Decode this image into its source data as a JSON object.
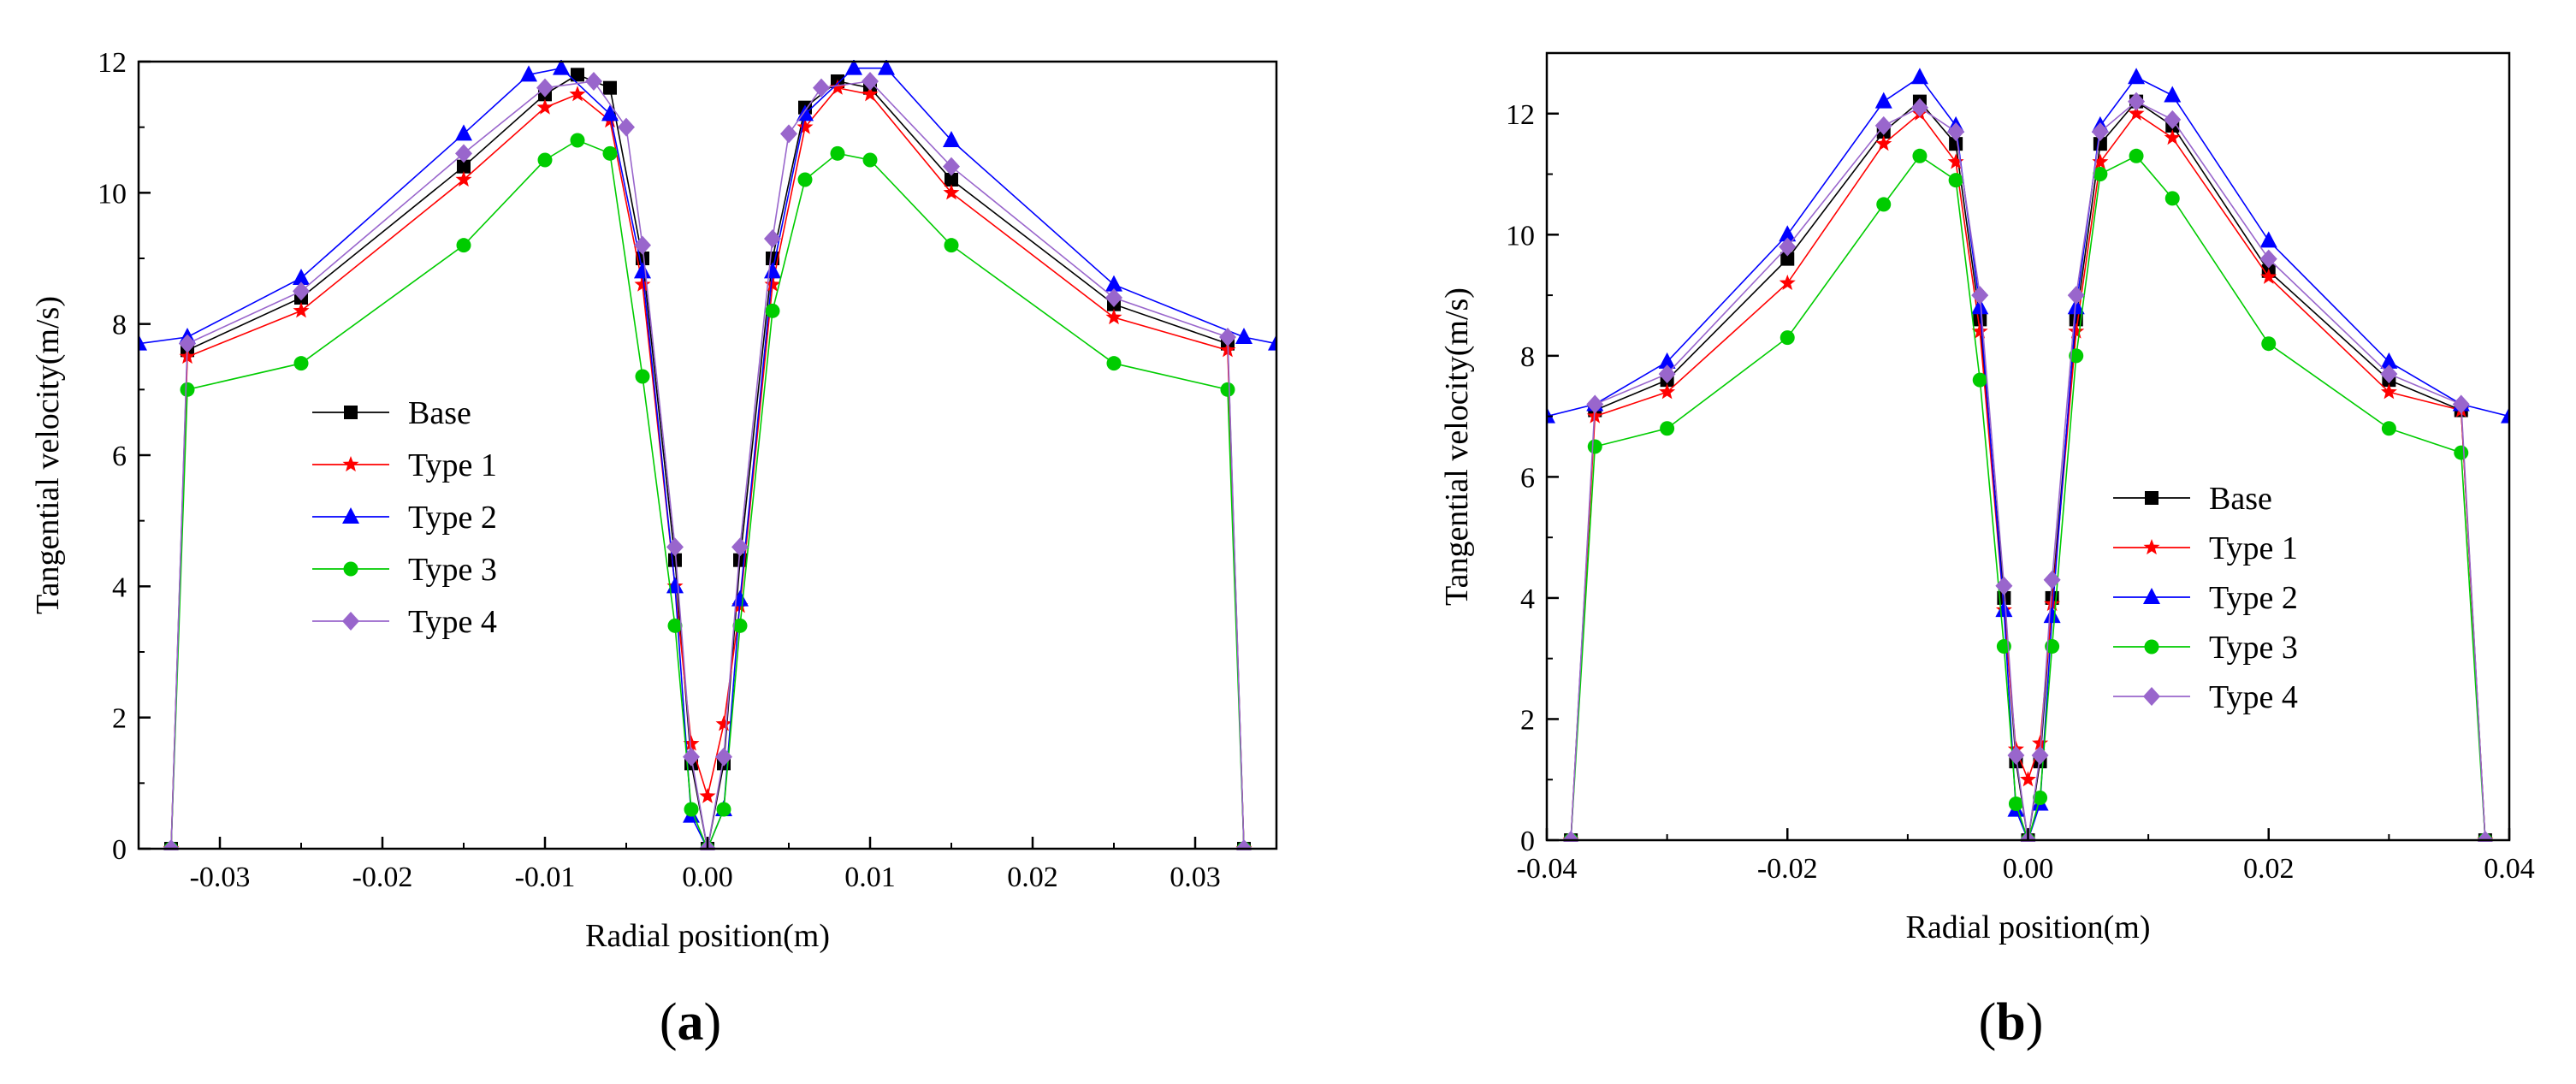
{
  "chart_data": [
    {
      "panel": "a",
      "panel_label": {
        "open": "(",
        "letter": "a",
        "close": ")"
      },
      "type": "line",
      "xlabel": "Radial position(m)",
      "ylabel": "Tangential velocity(m/s)",
      "xlim": [
        -0.035,
        0.035
      ],
      "ylim": [
        0,
        12
      ],
      "xticks": [
        -0.03,
        -0.02,
        -0.01,
        0.0,
        0.01,
        0.02,
        0.03
      ],
      "xtick_labels": [
        "-0.03",
        "-0.02",
        "-0.01",
        "0.00",
        "0.01",
        "0.02",
        "0.03"
      ],
      "yticks": [
        0,
        2,
        4,
        6,
        8,
        10,
        12
      ],
      "ytick_labels": [
        "0",
        "2",
        "4",
        "6",
        "8",
        "10",
        "12"
      ],
      "legend_position": "center-left",
      "series": [
        {
          "name": "Base",
          "color": "#000000",
          "marker": "square",
          "x": [
            -0.033,
            -0.032,
            -0.025,
            -0.015,
            -0.01,
            -0.008,
            -0.006,
            -0.004,
            -0.002,
            -0.001,
            0.0,
            0.001,
            0.002,
            0.004,
            0.006,
            0.008,
            0.01,
            0.015,
            0.025,
            0.032,
            0.033
          ],
          "values": [
            0,
            7.6,
            8.4,
            10.4,
            11.5,
            11.8,
            11.6,
            9.0,
            4.4,
            1.3,
            0.0,
            1.3,
            4.4,
            9.0,
            11.3,
            11.7,
            11.6,
            10.2,
            8.3,
            7.7,
            0
          ]
        },
        {
          "name": "Type 1",
          "color": "#ff0000",
          "marker": "star",
          "x": [
            -0.033,
            -0.032,
            -0.025,
            -0.015,
            -0.01,
            -0.008,
            -0.006,
            -0.004,
            -0.002,
            -0.001,
            0.0,
            0.001,
            0.002,
            0.004,
            0.006,
            0.008,
            0.01,
            0.015,
            0.025,
            0.032,
            0.033
          ],
          "values": [
            0,
            7.5,
            8.2,
            10.2,
            11.3,
            11.5,
            11.1,
            8.6,
            4.0,
            1.6,
            0.8,
            1.9,
            3.7,
            8.6,
            11.0,
            11.6,
            11.5,
            10.0,
            8.1,
            7.6,
            0
          ]
        },
        {
          "name": "Type 2",
          "color": "#0000ff",
          "marker": "triangle",
          "x": [
            -0.035,
            -0.032,
            -0.025,
            -0.015,
            -0.011,
            -0.009,
            -0.006,
            -0.004,
            -0.002,
            -0.001,
            0.0,
            0.001,
            0.002,
            0.004,
            0.006,
            0.009,
            0.011,
            0.015,
            0.025,
            0.033,
            0.035
          ],
          "values": [
            7.7,
            7.8,
            8.7,
            10.9,
            11.8,
            11.9,
            11.2,
            8.8,
            4.0,
            0.5,
            0.0,
            0.6,
            3.8,
            8.8,
            11.2,
            11.9,
            11.9,
            10.8,
            8.6,
            7.8,
            7.7
          ]
        },
        {
          "name": "Type 3",
          "color": "#00cc00",
          "marker": "circle",
          "x": [
            -0.033,
            -0.032,
            -0.025,
            -0.015,
            -0.01,
            -0.008,
            -0.006,
            -0.004,
            -0.002,
            -0.001,
            0.0,
            0.001,
            0.002,
            0.004,
            0.006,
            0.008,
            0.01,
            0.015,
            0.025,
            0.032,
            0.033
          ],
          "values": [
            0,
            7.0,
            7.4,
            9.2,
            10.5,
            10.8,
            10.6,
            7.2,
            3.4,
            0.6,
            0.0,
            0.6,
            3.4,
            8.2,
            10.2,
            10.6,
            10.5,
            9.2,
            7.4,
            7.0,
            0
          ]
        },
        {
          "name": "Type 4",
          "color": "#9966cc",
          "marker": "diamond",
          "x": [
            -0.033,
            -0.032,
            -0.025,
            -0.015,
            -0.01,
            -0.007,
            -0.005,
            -0.004,
            -0.002,
            -0.001,
            0.0,
            0.001,
            0.002,
            0.004,
            0.005,
            0.007,
            0.01,
            0.015,
            0.025,
            0.032,
            0.033
          ],
          "values": [
            0,
            7.7,
            8.5,
            10.6,
            11.6,
            11.7,
            11.0,
            9.2,
            4.6,
            1.4,
            0.0,
            1.4,
            4.6,
            9.3,
            10.9,
            11.6,
            11.7,
            10.4,
            8.4,
            7.8,
            0
          ]
        }
      ]
    },
    {
      "panel": "b",
      "panel_label": {
        "open": "(",
        "letter": "b",
        "close": ")"
      },
      "type": "line",
      "xlabel": "Radial position(m)",
      "ylabel": "Tangential velocity(m/s)",
      "xlim": [
        -0.04,
        0.04
      ],
      "ylim": [
        0,
        13
      ],
      "xticks": [
        -0.04,
        -0.02,
        0.0,
        0.02,
        0.04
      ],
      "xtick_labels": [
        "-0.04",
        "-0.02",
        "0.00",
        "0.02",
        "0.04"
      ],
      "yticks": [
        0,
        2,
        4,
        6,
        8,
        10,
        12
      ],
      "ytick_labels": [
        "0",
        "2",
        "4",
        "6",
        "8",
        "10",
        "12"
      ],
      "legend_position": "center-right",
      "series": [
        {
          "name": "Base",
          "color": "#000000",
          "marker": "square",
          "x": [
            -0.038,
            -0.036,
            -0.03,
            -0.02,
            -0.012,
            -0.009,
            -0.006,
            -0.004,
            -0.002,
            -0.001,
            0.0,
            0.001,
            0.002,
            0.004,
            0.006,
            0.009,
            0.012,
            0.02,
            0.03,
            0.036,
            0.038
          ],
          "values": [
            0,
            7.1,
            7.6,
            9.6,
            11.7,
            12.2,
            11.5,
            8.6,
            4.0,
            1.3,
            0.0,
            1.3,
            4.0,
            8.6,
            11.5,
            12.2,
            11.8,
            9.4,
            7.6,
            7.1,
            0
          ]
        },
        {
          "name": "Type 1",
          "color": "#ff0000",
          "marker": "star",
          "x": [
            -0.038,
            -0.036,
            -0.03,
            -0.02,
            -0.012,
            -0.009,
            -0.006,
            -0.004,
            -0.002,
            -0.001,
            0.0,
            0.001,
            0.002,
            0.004,
            0.006,
            0.009,
            0.012,
            0.02,
            0.03,
            0.036,
            0.038
          ],
          "values": [
            0,
            7.0,
            7.4,
            9.2,
            11.5,
            12.0,
            11.2,
            8.4,
            3.8,
            1.5,
            1.0,
            1.6,
            3.9,
            8.4,
            11.2,
            12.0,
            11.6,
            9.3,
            7.4,
            7.1,
            0
          ]
        },
        {
          "name": "Type 2",
          "color": "#0000ff",
          "marker": "triangle",
          "x": [
            -0.04,
            -0.036,
            -0.03,
            -0.02,
            -0.012,
            -0.009,
            -0.006,
            -0.004,
            -0.002,
            -0.001,
            0.0,
            0.001,
            0.002,
            0.004,
            0.006,
            0.009,
            0.012,
            0.02,
            0.03,
            0.036,
            0.04
          ],
          "values": [
            7.0,
            7.2,
            7.9,
            10.0,
            12.2,
            12.6,
            11.8,
            8.8,
            3.8,
            0.5,
            0.0,
            0.6,
            3.7,
            8.8,
            11.8,
            12.6,
            12.3,
            9.9,
            7.9,
            7.2,
            7.0
          ]
        },
        {
          "name": "Type 3",
          "color": "#00cc00",
          "marker": "circle",
          "x": [
            -0.038,
            -0.036,
            -0.03,
            -0.02,
            -0.012,
            -0.009,
            -0.006,
            -0.004,
            -0.002,
            -0.001,
            0.0,
            0.001,
            0.002,
            0.004,
            0.006,
            0.009,
            0.012,
            0.02,
            0.03,
            0.036,
            0.038
          ],
          "values": [
            0,
            6.5,
            6.8,
            8.3,
            10.5,
            11.3,
            10.9,
            7.6,
            3.2,
            0.6,
            0.0,
            0.7,
            3.2,
            8.0,
            11.0,
            11.3,
            10.6,
            8.2,
            6.8,
            6.4,
            0
          ]
        },
        {
          "name": "Type 4",
          "color": "#9966cc",
          "marker": "diamond",
          "x": [
            -0.038,
            -0.036,
            -0.03,
            -0.02,
            -0.012,
            -0.009,
            -0.006,
            -0.004,
            -0.002,
            -0.001,
            0.0,
            0.001,
            0.002,
            0.004,
            0.006,
            0.009,
            0.012,
            0.02,
            0.03,
            0.036,
            0.038
          ],
          "values": [
            0,
            7.2,
            7.7,
            9.8,
            11.8,
            12.1,
            11.7,
            9.0,
            4.2,
            1.4,
            0.0,
            1.4,
            4.3,
            9.0,
            11.7,
            12.2,
            11.9,
            9.6,
            7.7,
            7.2,
            0
          ]
        }
      ]
    }
  ]
}
